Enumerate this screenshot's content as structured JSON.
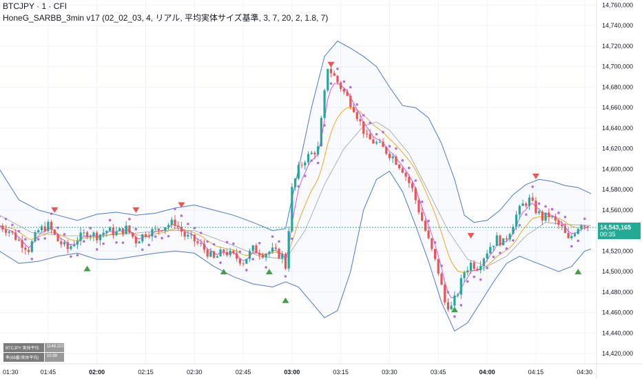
{
  "header": {
    "symbol_line": "BTCJPY · 1 · CFI",
    "indicator_line": "HoneG_SARBB_3min v17 (02_02_03, 4, リアル, 平均実体サイズ基準, 3, 7, 20, 2, 1.8, 7)"
  },
  "price_marker": {
    "price": "14,543,165",
    "countdown": "00:35"
  },
  "stats_table": [
    {
      "label": "BTCJPY 実体平均",
      "value": "1148.222"
    },
    {
      "label": "率(88番/実体平均)",
      "value": "10.99"
    }
  ],
  "colors": {
    "up": "#26a69a",
    "down": "#ef5350",
    "bb": "#4a78d8",
    "bb_mid": "#9e9e9e",
    "sar": "#b06ee0",
    "ema_fast": "#e040fb",
    "ema_slow": "#f5a623",
    "signal_down": "#ef5350",
    "signal_up": "#43a047",
    "current_price_line": "#22ab94"
  },
  "chart_data": {
    "type": "candlestick",
    "y_axis": {
      "min": 14410000,
      "max": 14765000,
      "ticks": [
        "14,760,000",
        "14,740,000",
        "14,720,000",
        "14,700,000",
        "14,680,000",
        "14,660,000",
        "14,640,000",
        "14,620,000",
        "14,600,000",
        "14,580,000",
        "14,560,000",
        "14,540,000",
        "14,520,000",
        "14,500,000",
        "14,480,000",
        "14,460,000",
        "14,440,000",
        "14,420,000"
      ],
      "tick_values": [
        14760000,
        14740000,
        14720000,
        14700000,
        14680000,
        14660000,
        14640000,
        14620000,
        14600000,
        14580000,
        14560000,
        14540000,
        14520000,
        14500000,
        14480000,
        14460000,
        14440000,
        14420000
      ]
    },
    "x_axis": {
      "start": "01:30",
      "end": "04:35",
      "ticks": [
        {
          "label": "01:30",
          "minute": 0,
          "major": false
        },
        {
          "label": "01:45",
          "minute": 15,
          "major": false
        },
        {
          "label": "02:00",
          "minute": 30,
          "major": true
        },
        {
          "label": "02:15",
          "minute": 45,
          "major": false
        },
        {
          "label": "02:30",
          "minute": 60,
          "major": false
        },
        {
          "label": "02:45",
          "minute": 75,
          "major": false
        },
        {
          "label": "03:00",
          "minute": 90,
          "major": true
        },
        {
          "label": "03:15",
          "minute": 105,
          "major": false
        },
        {
          "label": "03:30",
          "minute": 120,
          "major": false
        },
        {
          "label": "03:45",
          "minute": 135,
          "major": false
        },
        {
          "label": "04:00",
          "minute": 150,
          "major": true
        },
        {
          "label": "04:15",
          "minute": 165,
          "major": false
        },
        {
          "label": "04:30",
          "minute": 180,
          "major": false
        }
      ]
    },
    "close_path": [
      [
        0,
        14545000
      ],
      [
        3,
        14540000
      ],
      [
        6,
        14530000
      ],
      [
        9,
        14522000
      ],
      [
        12,
        14540000
      ],
      [
        15,
        14545000
      ],
      [
        18,
        14530000
      ],
      [
        21,
        14522000
      ],
      [
        24,
        14532000
      ],
      [
        27,
        14538000
      ],
      [
        30,
        14535000
      ],
      [
        33,
        14540000
      ],
      [
        36,
        14538000
      ],
      [
        39,
        14542000
      ],
      [
        42,
        14530000
      ],
      [
        45,
        14538000
      ],
      [
        48,
        14540000
      ],
      [
        51,
        14545000
      ],
      [
        54,
        14548000
      ],
      [
        57,
        14535000
      ],
      [
        60,
        14530000
      ],
      [
        63,
        14522000
      ],
      [
        66,
        14512000
      ],
      [
        69,
        14520000
      ],
      [
        72,
        14515000
      ],
      [
        75,
        14510000
      ],
      [
        78,
        14522000
      ],
      [
        81,
        14518000
      ],
      [
        84,
        14520000
      ],
      [
        87,
        14515000
      ],
      [
        88,
        14505000
      ],
      [
        90,
        14580000
      ],
      [
        92,
        14600000
      ],
      [
        94,
        14610000
      ],
      [
        96,
        14615000
      ],
      [
        98,
        14620000
      ],
      [
        101,
        14700000
      ],
      [
        103,
        14690000
      ],
      [
        105,
        14680000
      ],
      [
        107,
        14670000
      ],
      [
        109,
        14660000
      ],
      [
        111,
        14645000
      ],
      [
        113,
        14630000
      ],
      [
        116,
        14625000
      ],
      [
        118,
        14620000
      ],
      [
        121,
        14612000
      ],
      [
        124,
        14600000
      ],
      [
        127,
        14580000
      ],
      [
        129,
        14560000
      ],
      [
        131,
        14540000
      ],
      [
        133,
        14520000
      ],
      [
        135,
        14500000
      ],
      [
        137,
        14470000
      ],
      [
        139,
        14465000
      ],
      [
        141,
        14480000
      ],
      [
        143,
        14500000
      ],
      [
        145,
        14508000
      ],
      [
        147,
        14505000
      ],
      [
        149,
        14515000
      ],
      [
        151,
        14525000
      ],
      [
        153,
        14532000
      ],
      [
        155,
        14528000
      ],
      [
        157,
        14540000
      ],
      [
        159,
        14555000
      ],
      [
        161,
        14565000
      ],
      [
        163,
        14570000
      ],
      [
        165,
        14560000
      ],
      [
        167,
        14552000
      ],
      [
        169,
        14555000
      ],
      [
        171,
        14548000
      ],
      [
        173,
        14542000
      ],
      [
        175,
        14530000
      ],
      [
        177,
        14540000
      ],
      [
        179,
        14548000
      ],
      [
        181,
        14543165
      ]
    ],
    "bb_upper": [
      [
        0,
        14600000
      ],
      [
        6,
        14570000
      ],
      [
        12,
        14560000
      ],
      [
        18,
        14555000
      ],
      [
        24,
        14550000
      ],
      [
        30,
        14556000
      ],
      [
        36,
        14558000
      ],
      [
        42,
        14555000
      ],
      [
        48,
        14557000
      ],
      [
        54,
        14562000
      ],
      [
        60,
        14565000
      ],
      [
        66,
        14560000
      ],
      [
        72,
        14555000
      ],
      [
        78,
        14548000
      ],
      [
        84,
        14540000
      ],
      [
        88,
        14542000
      ],
      [
        92,
        14600000
      ],
      [
        96,
        14660000
      ],
      [
        100,
        14710000
      ],
      [
        104,
        14725000
      ],
      [
        108,
        14718000
      ],
      [
        112,
        14710000
      ],
      [
        116,
        14700000
      ],
      [
        120,
        14680000
      ],
      [
        124,
        14662000
      ],
      [
        128,
        14660000
      ],
      [
        132,
        14650000
      ],
      [
        136,
        14625000
      ],
      [
        140,
        14590000
      ],
      [
        143,
        14555000
      ],
      [
        146,
        14548000
      ],
      [
        150,
        14550000
      ],
      [
        154,
        14560000
      ],
      [
        158,
        14575000
      ],
      [
        162,
        14585000
      ],
      [
        166,
        14590000
      ],
      [
        170,
        14588000
      ],
      [
        174,
        14584000
      ],
      [
        178,
        14582000
      ],
      [
        182,
        14576000
      ]
    ],
    "bb_lower": [
      [
        0,
        14520000
      ],
      [
        6,
        14508000
      ],
      [
        12,
        14510000
      ],
      [
        18,
        14515000
      ],
      [
        24,
        14518000
      ],
      [
        30,
        14512000
      ],
      [
        36,
        14512000
      ],
      [
        42,
        14515000
      ],
      [
        48,
        14518000
      ],
      [
        54,
        14520000
      ],
      [
        60,
        14518000
      ],
      [
        66,
        14505000
      ],
      [
        72,
        14495000
      ],
      [
        78,
        14488000
      ],
      [
        84,
        14485000
      ],
      [
        88,
        14490000
      ],
      [
        92,
        14485000
      ],
      [
        96,
        14470000
      ],
      [
        100,
        14455000
      ],
      [
        104,
        14462000
      ],
      [
        108,
        14500000
      ],
      [
        112,
        14560000
      ],
      [
        116,
        14590000
      ],
      [
        120,
        14598000
      ],
      [
        124,
        14578000
      ],
      [
        128,
        14545000
      ],
      [
        132,
        14510000
      ],
      [
        136,
        14470000
      ],
      [
        140,
        14442000
      ],
      [
        144,
        14450000
      ],
      [
        148,
        14470000
      ],
      [
        152,
        14490000
      ],
      [
        156,
        14508000
      ],
      [
        160,
        14515000
      ],
      [
        164,
        14510000
      ],
      [
        168,
        14505000
      ],
      [
        172,
        14500000
      ],
      [
        176,
        14505000
      ],
      [
        180,
        14520000
      ],
      [
        182,
        14522000
      ]
    ],
    "bb_mid": [
      [
        0,
        14555000
      ],
      [
        10,
        14538000
      ],
      [
        20,
        14535000
      ],
      [
        30,
        14535000
      ],
      [
        40,
        14537000
      ],
      [
        50,
        14540000
      ],
      [
        60,
        14540000
      ],
      [
        70,
        14528000
      ],
      [
        80,
        14515000
      ],
      [
        88,
        14512000
      ],
      [
        94,
        14540000
      ],
      [
        100,
        14585000
      ],
      [
        106,
        14620000
      ],
      [
        112,
        14642000
      ],
      [
        116,
        14646000
      ],
      [
        120,
        14638000
      ],
      [
        126,
        14615000
      ],
      [
        132,
        14578000
      ],
      [
        138,
        14540000
      ],
      [
        144,
        14512000
      ],
      [
        150,
        14505000
      ],
      [
        156,
        14515000
      ],
      [
        162,
        14535000
      ],
      [
        168,
        14548000
      ],
      [
        174,
        14546000
      ],
      [
        182,
        14545000
      ]
    ],
    "signals_down": [
      [
        17,
        14560000
      ],
      [
        42,
        14560000
      ],
      [
        56,
        14565000
      ],
      [
        102,
        14702000
      ],
      [
        145,
        14535000
      ],
      [
        165,
        14593000
      ]
    ],
    "signals_up": [
      [
        27,
        14503000
      ],
      [
        69,
        14500000
      ],
      [
        83,
        14500000
      ],
      [
        88,
        14472000
      ],
      [
        140,
        14463000
      ],
      [
        178,
        14500000
      ]
    ]
  }
}
